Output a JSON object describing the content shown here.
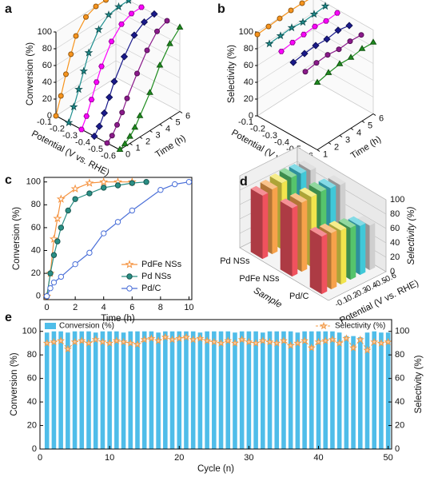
{
  "chart_data": [
    {
      "panel": "a",
      "type": "line3d",
      "xlabel": "Potential (V vs. RHE)",
      "ylabel": "Time (h)",
      "zlabel": "Conversion (%)",
      "categories": [
        -0.1,
        -0.2,
        -0.3,
        -0.4,
        -0.5,
        -0.6
      ],
      "x": [
        0,
        0.5,
        1,
        1.5,
        2,
        3,
        4,
        5,
        6
      ],
      "ylim": [
        0,
        6
      ],
      "yticks": [
        0,
        1,
        2,
        3,
        4,
        5,
        6
      ],
      "zlim": [
        0,
        100
      ],
      "zticks": [
        0,
        20,
        40,
        60,
        80,
        100
      ],
      "series": [
        {
          "color": "#f7941d",
          "marker": "circle",
          "values": [
            0,
            20,
            42,
            62,
            80,
            95,
            100,
            100,
            100
          ]
        },
        {
          "color": "#1f8f8f",
          "marker": "star",
          "values": [
            0,
            15,
            32,
            50,
            68,
            88,
            98,
            100,
            100
          ]
        },
        {
          "color": "#ff00ff",
          "marker": "hexagon",
          "values": [
            0,
            12,
            28,
            45,
            60,
            82,
            95,
            100,
            100
          ]
        },
        {
          "color": "#1a1a8c",
          "marker": "diamond",
          "values": [
            0,
            8,
            20,
            35,
            50,
            72,
            90,
            98,
            100
          ]
        },
        {
          "color": "#8b1a8b",
          "marker": "circle",
          "values": [
            0,
            5,
            14,
            25,
            38,
            60,
            80,
            95,
            100
          ]
        },
        {
          "color": "#1e8c1e",
          "marker": "triangle",
          "values": [
            0,
            3,
            8,
            15,
            25,
            45,
            70,
            88,
            100
          ]
        }
      ]
    },
    {
      "panel": "b",
      "type": "line3d",
      "xlabel": "Potential (V vs. RHE)",
      "ylabel": "Time (h)",
      "zlabel": "Selectivity (%)",
      "categories": [
        -0.1,
        -0.2,
        -0.3,
        -0.4,
        -0.5,
        -0.6
      ],
      "x": [
        1,
        2,
        3,
        4,
        5,
        6
      ],
      "ylim": [
        1,
        6
      ],
      "yticks": [
        1,
        2,
        3,
        4,
        5,
        6
      ],
      "zlim": [
        0,
        100
      ],
      "zticks": [
        0,
        20,
        40,
        60,
        80,
        100
      ],
      "series": [
        {
          "color": "#f7941d",
          "marker": "circle",
          "values": [
            97,
            98,
            99,
            100,
            100,
            99
          ]
        },
        {
          "color": "#1f8f8f",
          "marker": "star",
          "values": [
            94,
            95,
            96,
            94,
            95,
            96
          ]
        },
        {
          "color": "#ff00ff",
          "marker": "hexagon",
          "values": [
            93,
            95,
            96,
            97,
            95,
            96
          ]
        },
        {
          "color": "#1a1a8c",
          "marker": "diamond",
          "values": [
            88,
            90,
            91,
            90,
            92,
            89
          ]
        },
        {
          "color": "#8b1a8b",
          "marker": "circle",
          "values": [
            85,
            87,
            88,
            86,
            87,
            86
          ]
        },
        {
          "color": "#1e8c1e",
          "marker": "triangle",
          "values": [
            80,
            83,
            85,
            84,
            86,
            85
          ]
        }
      ]
    },
    {
      "panel": "c",
      "type": "line",
      "xlabel": "Time (h)",
      "ylabel": "Conversion (%)",
      "xlim": [
        -0.2,
        10.2
      ],
      "xticks": [
        0,
        2,
        4,
        6,
        8,
        10
      ],
      "ylim": [
        -3,
        104
      ],
      "yticks": [
        0,
        20,
        40,
        60,
        80,
        100
      ],
      "legend": "lower right",
      "series": [
        {
          "name": "PdFe NSs",
          "color": "#f5923e",
          "marker": "open-star",
          "x": [
            0,
            0.25,
            0.5,
            0.75,
            1,
            2,
            3,
            4,
            5,
            6
          ],
          "values": [
            0,
            20,
            50,
            68,
            85,
            94,
            99,
            100,
            100,
            100
          ]
        },
        {
          "name": "Pd NSs",
          "color": "#2a8f85",
          "marker": "circle",
          "x": [
            0,
            0.25,
            0.5,
            0.75,
            1,
            1.5,
            2,
            3,
            4,
            5,
            6,
            7
          ],
          "values": [
            0,
            20,
            36,
            48,
            60,
            75,
            85,
            90,
            95,
            97,
            99,
            100
          ]
        },
        {
          "name": "Pd/C",
          "color": "#4a6fd8",
          "marker": "open-circle",
          "x": [
            0,
            0.25,
            0.5,
            1,
            2,
            3,
            4,
            5,
            6,
            8,
            9,
            10
          ],
          "values": [
            0,
            7,
            12,
            17,
            28,
            38,
            55,
            65,
            75,
            93,
            98,
            100
          ]
        }
      ]
    },
    {
      "panel": "d",
      "type": "bar3d",
      "xlabel": "Sample",
      "ylabel": "Potential (V vs. RHE)",
      "zlabel": "Selectivity (%)",
      "categories": [
        "Pd NSs",
        "PdFe NSs",
        "Pd/C"
      ],
      "potentials": [
        -0.1,
        -0.2,
        -0.3,
        -0.4,
        -0.5,
        -0.6
      ],
      "zlim": [
        0,
        100
      ],
      "zticks": [
        0,
        20,
        40,
        60,
        80,
        100
      ],
      "series": [
        {
          "color": "#f0525e",
          "values": [
            88,
            95,
            80
          ]
        },
        {
          "color": "#f7a24b",
          "values": [
            90,
            96,
            78
          ]
        },
        {
          "color": "#f2e44d",
          "values": [
            92,
            97,
            75
          ]
        },
        {
          "color": "#56c46b",
          "values": [
            93,
            98,
            72
          ]
        },
        {
          "color": "#40c8d8",
          "values": [
            92,
            96,
            68
          ]
        },
        {
          "color": "#cfcfcf",
          "values": [
            90,
            94,
            62
          ]
        }
      ]
    },
    {
      "panel": "e",
      "type": "bar_line",
      "xlabel": "Cycle (n)",
      "ylabel": "Conversion (%)",
      "y2label": "Selectivity (%)",
      "x": [
        1,
        2,
        3,
        4,
        5,
        6,
        7,
        8,
        9,
        10,
        11,
        12,
        13,
        14,
        15,
        16,
        17,
        18,
        19,
        20,
        21,
        22,
        23,
        24,
        25,
        26,
        27,
        28,
        29,
        30,
        31,
        32,
        33,
        34,
        35,
        36,
        37,
        38,
        39,
        40,
        41,
        42,
        43,
        44,
        45,
        46,
        47,
        48,
        49,
        50
      ],
      "xlim": [
        0,
        50.5
      ],
      "xticks": [
        0,
        10,
        20,
        30,
        40,
        50
      ],
      "ylim": [
        0,
        110
      ],
      "yticks": [
        0,
        20,
        40,
        60,
        80,
        100
      ],
      "y2lim": [
        0,
        110
      ],
      "y2ticks": [
        0,
        20,
        40,
        60,
        80,
        100
      ],
      "series": [
        {
          "name": "Conversion (%)",
          "type": "bar",
          "color": "#4fbde9",
          "values": [
            99,
            100,
            100,
            99,
            100,
            100,
            100,
            99,
            100,
            100,
            100,
            99,
            100,
            100,
            100,
            100,
            99,
            100,
            100,
            100,
            100,
            100,
            99,
            100,
            100,
            100,
            100,
            99,
            100,
            100,
            100,
            99,
            100,
            100,
            100,
            100,
            99,
            100,
            100,
            100,
            100,
            100,
            99,
            96,
            96,
            95,
            99,
            100,
            99,
            99
          ]
        },
        {
          "name": "Selectivity (%)",
          "type": "line",
          "axis": "y2",
          "color": "#f39c4a",
          "values": [
            90,
            91,
            92,
            85,
            91,
            92,
            90,
            93,
            91,
            90,
            92,
            91,
            90,
            89,
            93,
            94,
            92,
            95,
            93,
            94,
            95,
            93,
            94,
            92,
            91,
            90,
            92,
            90,
            93,
            91,
            90,
            92,
            91,
            90,
            92,
            88,
            90,
            92,
            86,
            91,
            92,
            93,
            90,
            94,
            86,
            93,
            84,
            91,
            90,
            91
          ]
        }
      ]
    }
  ]
}
